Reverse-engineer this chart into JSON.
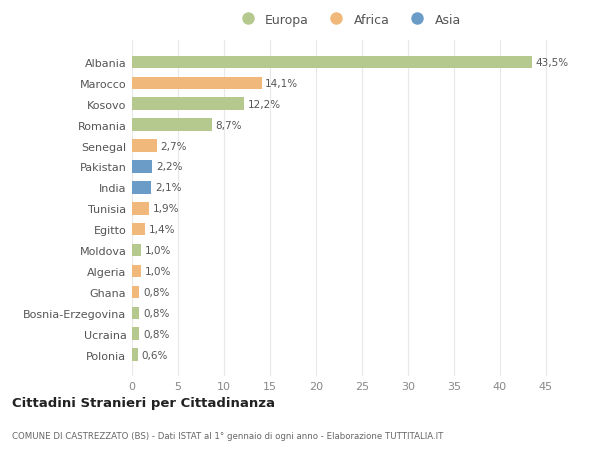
{
  "categories": [
    "Albania",
    "Marocco",
    "Kosovo",
    "Romania",
    "Senegal",
    "Pakistan",
    "India",
    "Tunisia",
    "Egitto",
    "Moldova",
    "Algeria",
    "Ghana",
    "Bosnia-Erzegovina",
    "Ucraina",
    "Polonia"
  ],
  "values": [
    43.5,
    14.1,
    12.2,
    8.7,
    2.7,
    2.2,
    2.1,
    1.9,
    1.4,
    1.0,
    1.0,
    0.8,
    0.8,
    0.8,
    0.6
  ],
  "labels": [
    "43,5%",
    "14,1%",
    "12,2%",
    "8,7%",
    "2,7%",
    "2,2%",
    "2,1%",
    "1,9%",
    "1,4%",
    "1,0%",
    "1,0%",
    "0,8%",
    "0,8%",
    "0,8%",
    "0,6%"
  ],
  "continents": [
    "Europa",
    "Africa",
    "Europa",
    "Europa",
    "Africa",
    "Asia",
    "Asia",
    "Africa",
    "Africa",
    "Europa",
    "Africa",
    "Africa",
    "Europa",
    "Europa",
    "Europa"
  ],
  "colors": {
    "Europa": "#b5c98e",
    "Africa": "#f0b87a",
    "Asia": "#6b9bc7"
  },
  "title": "Cittadini Stranieri per Cittadinanza",
  "subtitle": "COMUNE DI CASTREZZATO (BS) - Dati ISTAT al 1° gennaio di ogni anno - Elaborazione TUTTITALIA.IT",
  "xlim": [
    0,
    47
  ],
  "xticks": [
    0,
    5,
    10,
    15,
    20,
    25,
    30,
    35,
    40,
    45
  ],
  "bg_color": "#ffffff",
  "grid_color": "#e8e8e8"
}
